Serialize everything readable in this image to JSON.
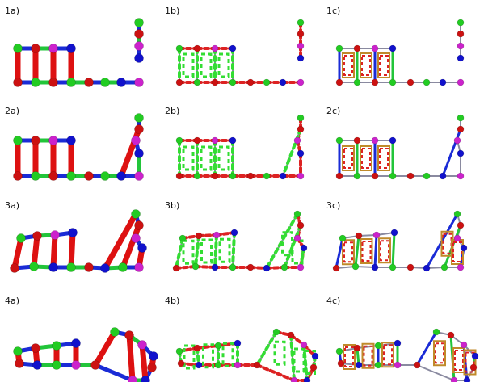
{
  "figure": {
    "panels": [
      {
        "label": "1a)",
        "row": 1,
        "col": 1,
        "state": 1,
        "style": "a"
      },
      {
        "label": "1b)",
        "row": 1,
        "col": 2,
        "state": 1,
        "style": "b"
      },
      {
        "label": "1c)",
        "row": 1,
        "col": 3,
        "state": 1,
        "style": "c"
      },
      {
        "label": "2a)",
        "row": 2,
        "col": 1,
        "state": 2,
        "style": "a"
      },
      {
        "label": "2b)",
        "row": 2,
        "col": 2,
        "state": 2,
        "style": "b"
      },
      {
        "label": "2c)",
        "row": 2,
        "col": 3,
        "state": 2,
        "style": "c"
      },
      {
        "label": "3a)",
        "row": 3,
        "col": 1,
        "state": 3,
        "style": "a"
      },
      {
        "label": "3b)",
        "row": 3,
        "col": 2,
        "state": 3,
        "style": "b"
      },
      {
        "label": "3c)",
        "row": 3,
        "col": 3,
        "state": 3,
        "style": "c"
      },
      {
        "label": "4a)",
        "row": 4,
        "col": 1,
        "state": 4,
        "style": "a"
      },
      {
        "label": "4b)",
        "row": 4,
        "col": 2,
        "state": 4,
        "style": "b"
      },
      {
        "label": "4c)",
        "row": 4,
        "col": 3,
        "state": 4,
        "style": "c"
      }
    ],
    "colors": {
      "node_green": "#22cc22",
      "node_red": "#cc1111",
      "node_blue": "#1111cc",
      "node_magenta": "#cc22cc",
      "rod_red": "#dd1111",
      "rod_blue": "#1a2bd6",
      "rod_green": "#22c53a",
      "bond_gray": "#8a8aa0",
      "dash_green": "#33dd33",
      "dash_red": "#dd2222",
      "outline_orange": "#c08a2a"
    }
  }
}
